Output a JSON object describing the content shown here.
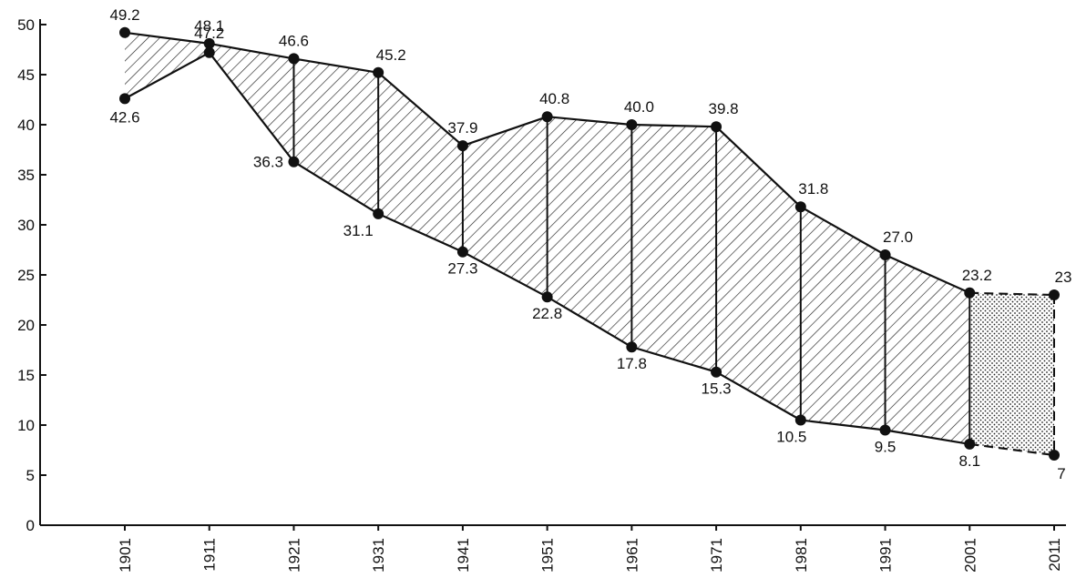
{
  "chart_data": {
    "type": "area",
    "title": "",
    "xlabel": "",
    "ylabel": "",
    "categories": [
      "1901",
      "1911",
      "1921",
      "1931",
      "1941",
      "1951",
      "1961",
      "1971",
      "1981",
      "1991",
      "2001",
      "2011"
    ],
    "ylim": [
      0,
      50
    ],
    "yticks": [
      "0",
      "5",
      "10",
      "15",
      "20",
      "25",
      "30",
      "35",
      "40",
      "45",
      "50"
    ],
    "grid": false,
    "legend": "none",
    "series": [
      {
        "values": [
          49.2,
          48.1,
          46.6,
          45.2,
          37.9,
          40.8,
          40.0,
          39.8,
          31.8,
          27.0,
          23.2,
          23
        ],
        "labels": [
          "49.2",
          "48.1",
          "46.6",
          "45.2",
          "37.9",
          "40.8",
          "40.0",
          "39.8",
          "31.8",
          "27.0",
          "23.2",
          "23"
        ]
      },
      {
        "values": [
          42.6,
          47.2,
          36.3,
          31.1,
          27.3,
          22.8,
          17.8,
          15.3,
          10.5,
          9.5,
          8.1,
          7
        ],
        "labels": [
          "42.6",
          "47.2",
          "36.3",
          "31.1",
          "27.3",
          "22.8",
          "17.8",
          "15.3",
          "10.5",
          "9.5",
          "8.1",
          "7"
        ]
      }
    ],
    "projected_from": "2001",
    "colors": {
      "line": "#111111",
      "hatch": "#222222",
      "background": "#ffffff"
    }
  }
}
